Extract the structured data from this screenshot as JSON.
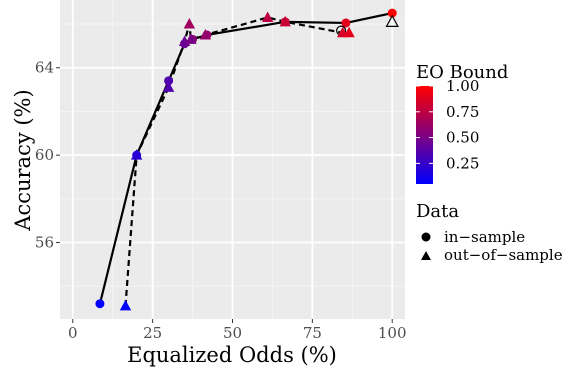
{
  "chart_data": {
    "type": "scatter",
    "xlabel": "Equalized Odds (%)",
    "ylabel": "Accuracy (%)",
    "xlim": [
      -4,
      104
    ],
    "ylim": [
      52.5,
      67.1
    ],
    "x_ticks": [
      0,
      25,
      50,
      75,
      100
    ],
    "x_tick_labels": [
      "0",
      "25",
      "50",
      "75",
      "100"
    ],
    "y_ticks": [
      56,
      60,
      64
    ],
    "y_tick_labels": [
      "56",
      "60",
      "64"
    ],
    "grid": true,
    "panel_background": "#ebebeb",
    "color_scale": {
      "title": "EO Bound",
      "low_color": "#0000ff",
      "high_color": "#ff0000",
      "ticks": [
        0.25,
        0.5,
        0.75,
        1.0
      ],
      "tick_labels": [
        "0.25",
        "0.50",
        "0.75",
        "1.00"
      ],
      "range": [
        0.05,
        1.0
      ]
    },
    "shape_legend": {
      "title": "Data",
      "entries": [
        {
          "shape": "circle",
          "label": "in−sample"
        },
        {
          "shape": "triangle",
          "label": "out−of−sample"
        }
      ]
    },
    "series": [
      {
        "name": "in−sample",
        "shape": "circle",
        "line": "solid",
        "points": [
          {
            "x": 8.5,
            "y": 53.2,
            "bound": 0.05
          },
          {
            "x": 20.0,
            "y": 60.0,
            "bound": 0.2
          },
          {
            "x": 30.0,
            "y": 63.4,
            "bound": 0.35
          },
          {
            "x": 35.0,
            "y": 65.1,
            "bound": 0.45
          },
          {
            "x": 37.5,
            "y": 65.3,
            "bound": 0.55
          },
          {
            "x": 42.0,
            "y": 65.5,
            "bound": 0.6
          },
          {
            "x": 66.5,
            "y": 66.1,
            "bound": 0.8
          },
          {
            "x": 85.5,
            "y": 66.05,
            "bound": 0.9
          },
          {
            "x": 100.0,
            "y": 66.5,
            "bound": 1.0
          }
        ],
        "hollow_points": [
          {
            "x": 84.0,
            "y": 65.7
          }
        ]
      },
      {
        "name": "out−of−sample",
        "shape": "triangle",
        "line": "dashed",
        "points": [
          {
            "x": 16.5,
            "y": 53.1,
            "bound": 0.05
          },
          {
            "x": 20.0,
            "y": 60.0,
            "bound": 0.2
          },
          {
            "x": 30.0,
            "y": 63.1,
            "bound": 0.35
          },
          {
            "x": 35.0,
            "y": 65.2,
            "bound": 0.45
          },
          {
            "x": 36.5,
            "y": 66.0,
            "bound": 0.65
          },
          {
            "x": 37.0,
            "y": 65.3,
            "bound": 0.5
          },
          {
            "x": 41.5,
            "y": 65.5,
            "bound": 0.6
          },
          {
            "x": 61.0,
            "y": 66.3,
            "bound": 0.75
          },
          {
            "x": 66.5,
            "y": 66.1,
            "bound": 0.8
          },
          {
            "x": 84.5,
            "y": 65.6,
            "bound": 0.85
          },
          {
            "x": 86.5,
            "y": 65.6,
            "bound": 0.9
          }
        ],
        "hollow_points": [
          {
            "x": 100.0,
            "y": 66.1
          }
        ]
      }
    ]
  }
}
